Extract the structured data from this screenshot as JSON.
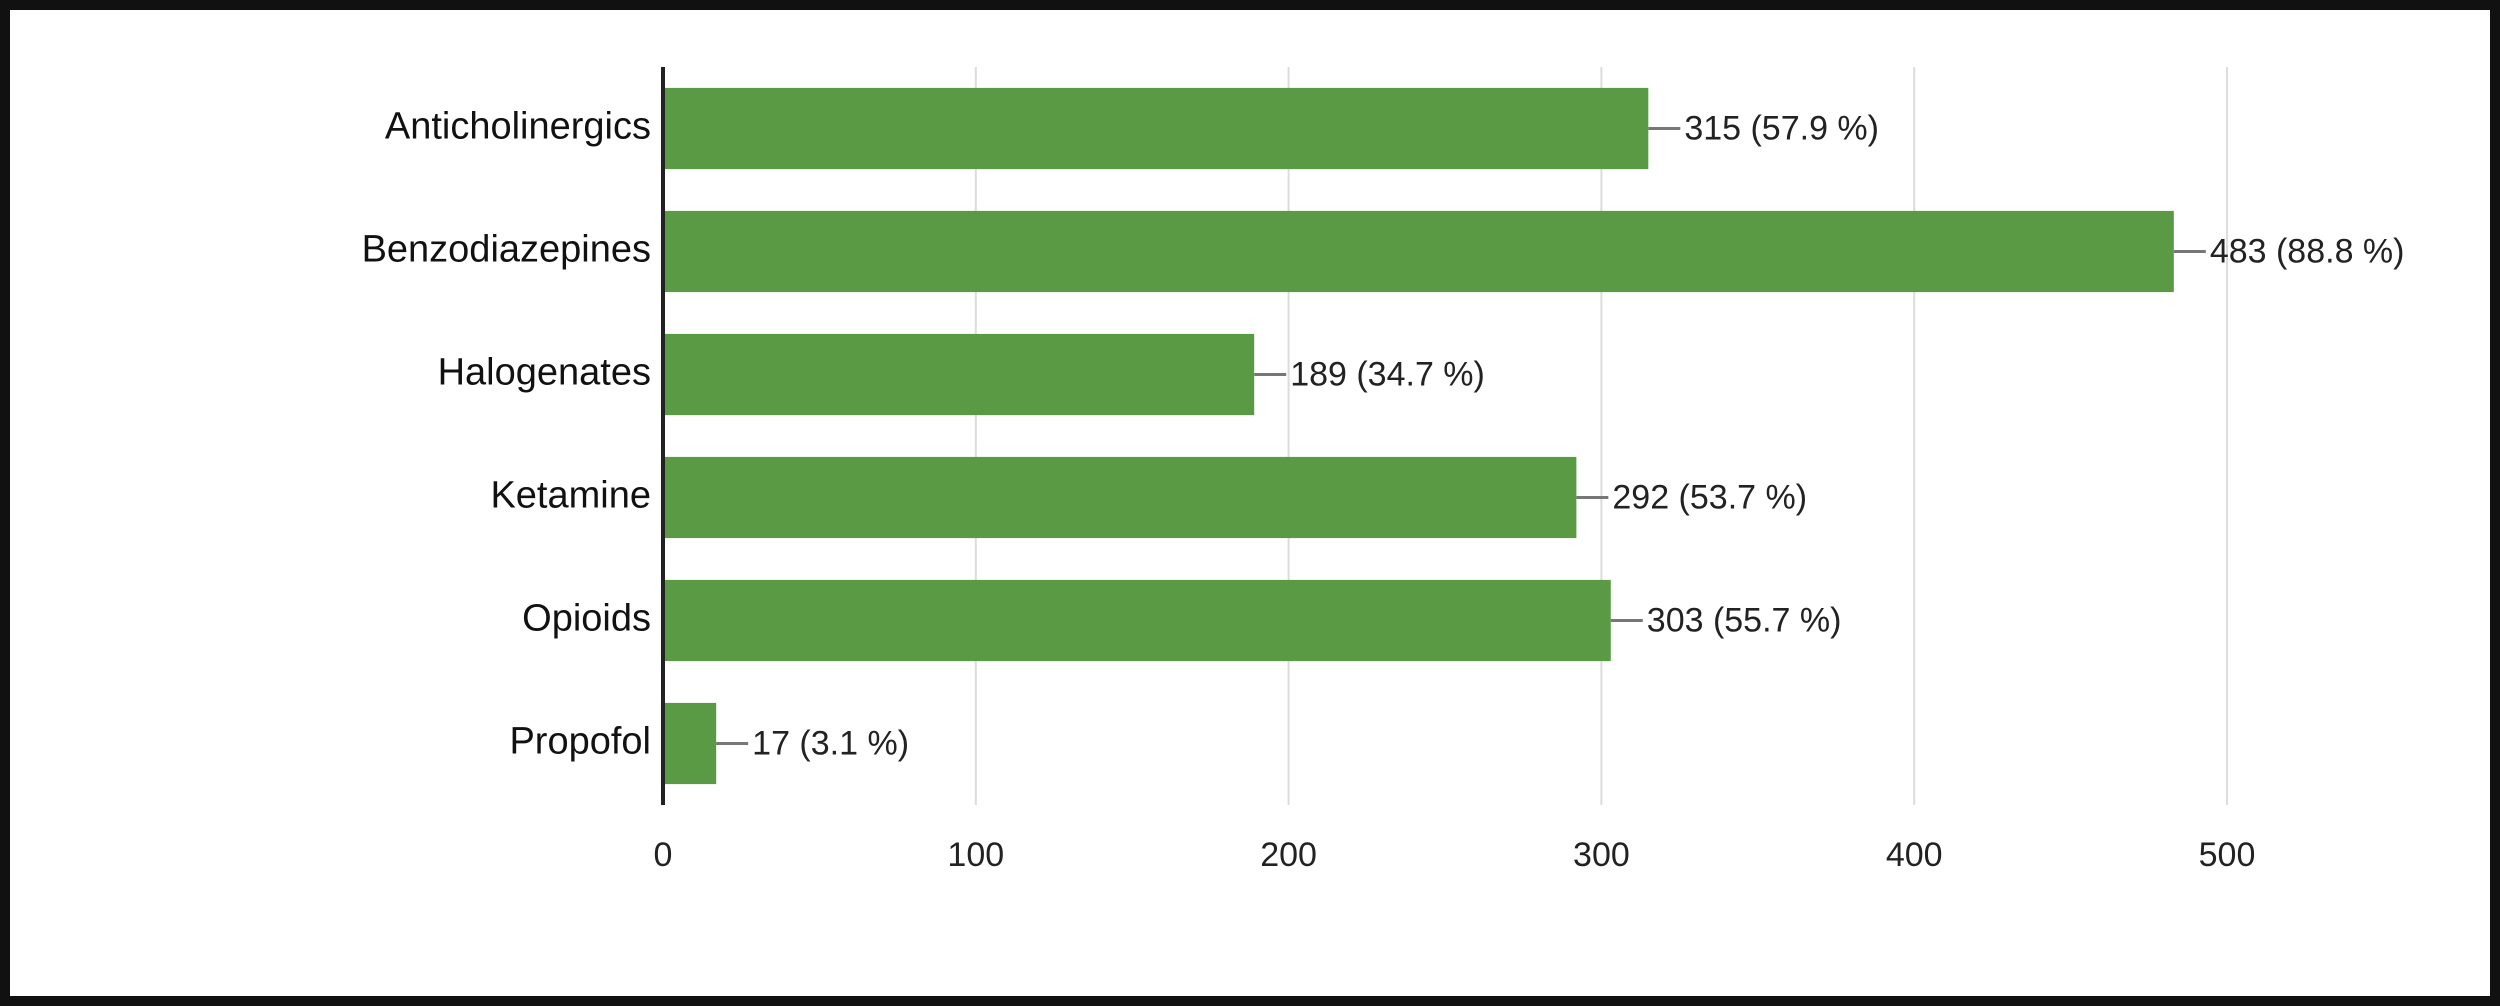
{
  "chart_data": {
    "type": "bar",
    "orientation": "horizontal",
    "categories": [
      "Anticholinergics",
      "Benzodiazepines",
      "Halogenates",
      "Ketamine",
      "Opioids",
      "Propofol"
    ],
    "values": [
      315,
      483,
      189,
      292,
      303,
      17
    ],
    "value_labels": [
      "315 (57.9 %)",
      "483 (88.8 %)",
      "189 (34.7 %)",
      "292 (53.7 %)",
      "303 (55.7 %)",
      "17 (3.1 %)"
    ],
    "color": "#5b9a44",
    "xlim": [
      0,
      500
    ],
    "xticks": [
      0,
      100,
      200,
      300,
      400,
      500
    ],
    "grid": true
  }
}
